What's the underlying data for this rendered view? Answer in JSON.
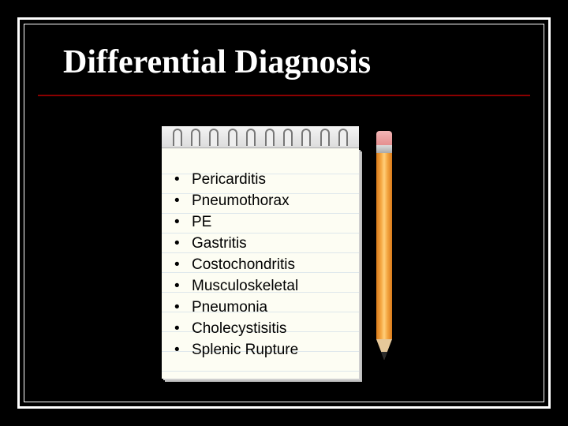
{
  "slide": {
    "title": "Differential Diagnosis",
    "background_color": "#000000",
    "border_color": "#ffffff",
    "underline_color": "#8b0000",
    "title_color": "#ffffff",
    "title_font": "Times New Roman",
    "title_fontsize": 42
  },
  "notepad": {
    "paper_color": "#fdfdf3",
    "rule_color": "#c9d8e6",
    "binding_color": "#dcdcdc",
    "items": [
      "Pericarditis",
      "Pneumothorax",
      "PE",
      "Gastritis",
      "Costochondritis",
      "Musculoskeletal",
      "Pneumonia",
      "Cholecystisitis",
      "Splenic Rupture"
    ],
    "item_fontsize": 19,
    "item_color": "#000000"
  },
  "pencil": {
    "shaft_color": "#f5a742",
    "eraser_color": "#e58f8f",
    "ferrule_color": "#a9a9a9",
    "wood_color": "#e6c89a",
    "lead_color": "#2c2c2c"
  }
}
